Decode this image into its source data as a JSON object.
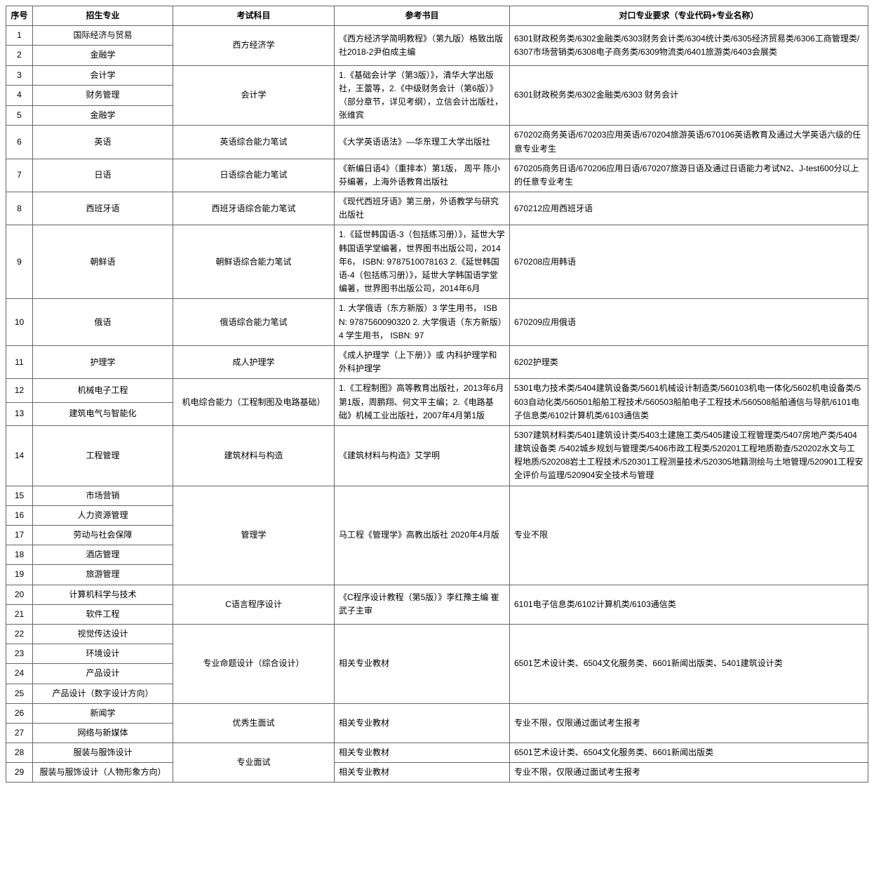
{
  "headers": {
    "no": "序号",
    "major": "招生专业",
    "exam": "考试科目",
    "ref": "参考书目",
    "req": "对口专业要求（专业代码+专业名称）"
  },
  "rows": {
    "r1": {
      "no": "1",
      "major": "国际经济与贸易"
    },
    "r2": {
      "no": "2",
      "major": "金融学"
    },
    "r3": {
      "no": "3",
      "major": "会计学"
    },
    "r4": {
      "no": "4",
      "major": "财务管理"
    },
    "r5": {
      "no": "5",
      "major": "金融学"
    },
    "r6": {
      "no": "6",
      "major": "英语"
    },
    "r7": {
      "no": "7",
      "major": "日语"
    },
    "r8": {
      "no": "8",
      "major": "西班牙语"
    },
    "r9": {
      "no": "9",
      "major": "朝鲜语"
    },
    "r10": {
      "no": "10",
      "major": "俄语"
    },
    "r11": {
      "no": "11",
      "major": "护理学"
    },
    "r12": {
      "no": "12",
      "major": "机械电子工程"
    },
    "r13": {
      "no": "13",
      "major": "建筑电气与智能化"
    },
    "r14": {
      "no": "14",
      "major": "工程管理"
    },
    "r15": {
      "no": "15",
      "major": "市场营销"
    },
    "r16": {
      "no": "16",
      "major": "人力资源管理"
    },
    "r17": {
      "no": "17",
      "major": "劳动与社会保障"
    },
    "r18": {
      "no": "18",
      "major": "酒店管理"
    },
    "r19": {
      "no": "19",
      "major": "旅游管理"
    },
    "r20": {
      "no": "20",
      "major": "计算机科学与技术"
    },
    "r21": {
      "no": "21",
      "major": "软件工程"
    },
    "r22": {
      "no": "22",
      "major": "视觉传达设计"
    },
    "r23": {
      "no": "23",
      "major": "环境设计"
    },
    "r24": {
      "no": "24",
      "major": "产品设计"
    },
    "r25": {
      "no": "25",
      "major": "产品设计（数字设计方向）"
    },
    "r26": {
      "no": "26",
      "major": "新闻学"
    },
    "r27": {
      "no": "27",
      "major": "网络与新媒体"
    },
    "r28": {
      "no": "28",
      "major": "服装与服饰设计"
    },
    "r29": {
      "no": "29",
      "major": "服装与服饰设计（人物形象方向）"
    }
  },
  "exam": {
    "e1": "西方经济学",
    "e2": "会计学",
    "e3": "英语综合能力笔试",
    "e4": "日语综合能力笔试",
    "e5": "西班牙语综合能力笔试",
    "e6": "朝鲜语综合能力笔试",
    "e7": "俄语综合能力笔试",
    "e8": "成人护理学",
    "e9": "机电综合能力（工程制图及电路基础）",
    "e10": "建筑材料与构造",
    "e11": "管理学",
    "e12": "C语言程序设计",
    "e13": "专业命题设计（综合设计）",
    "e14": "优秀生面试",
    "e15": "专业面试"
  },
  "ref": {
    "f1": "《西方经济学简明教程》（第九版）格致出版社2018-2尹伯成主编",
    "f2": "1.《基础会计学（第3版）》，清华大学出版社，王蕾等，2.《中级财务会计（第6版）》（部分章节，详见考纲），立信会计出版社，张维宾",
    "f3": "《大学英语语法》—华东理工大学出版社",
    "f4": "《新编日语4》（重排本）第1版， 周平 陈小芬编著，上海外语教育出版社",
    "f5": "《现代西班牙语》第三册，外语教学与研究出版社",
    "f6": "1.《延世韩国语-3（包括练习册）》，延世大学韩国语学堂编著，世界图书出版公司，2014年6， ISBN: 9787510078163 2.《延世韩国语-4（包括练习册）》，延世大学韩国语学堂编著，世界图书出版公司，2014年6月",
    "f7": "1. 大学俄语（东方新版）3 学生用书， ISBN: 9787560090320   2. 大学俄语（东方新版）4 学生用书， ISBN: 97",
    "f8": "《成人护理学（上下册）》或 内科护理学和外科护理学",
    "f9": "1.《工程制图》高等教育出版社，2013年6月第1版，周鹏翔、何文平主编；2.《电路基础》机械工业出版社，2007年4月第1版",
    "f10": "《建筑材料与构造》艾学明",
    "f11": "马工程《管理学》高教出版社 2020年4月版",
    "f12": "《C程序设计教程（第5版）》李红豫主编 崔武子主审",
    "f13": "相关专业教材",
    "f14": "相关专业教材",
    "f15": "相关专业教材",
    "f16": "相关专业教材"
  },
  "req": {
    "q1": "6301财政税务类/6302金融类/6303财务会计类/6304统计类/6305经济贸易类/6306工商管理类/6307市场营销类/6308电子商务类/6309物流类/6401旅游类/6403会展类",
    "q2": "6301财政税务类/6302金融类/6303 财务会计",
    "q3": "670202商务英语/670203应用英语/670204旅游英语/670106英语教育及通过大学英语六级的任意专业考生",
    "q4": "670205商务日语/670206应用日语/670207旅游日语及通过日语能力考试N2、J-test600分以上的任意专业考生",
    "q5": "670212应用西班牙语",
    "q6": "670208应用韩语",
    "q7": "670209应用俄语",
    "q8": "6202护理类",
    "q9": "5301电力技术类/5404建筑设备类/5601机械设计制造类/560103机电一体化/5602机电设备类/5603自动化类/560501船舶工程技术/560503船舶电子工程技术/560508船舶通信与导航/6101电子信息类/6102计算机类/6103通信类",
    "q10": "5307建筑材料类/5401建筑设计类/5403土建施工类/5405建设工程管理类/5407房地产类/5404建筑设备类 /5402城乡规划与管理类/5406市政工程类/520201工程地质勘查/520202水文与工程地质/520208岩土工程技术/520301工程测量技术/520305地籍测绘与土地管理/520901工程安全评价与监理/520904安全技术与管理",
    "q11": "专业不限",
    "q12": "6101电子信息类/6102计算机类/6103通信类",
    "q13": "6501艺术设计类、6504文化服务类、6601新闻出版类、5401建筑设计类",
    "q14": "专业不限，仅限通过面试考生报考",
    "q15": "6501艺术设计类、6504文化服务类、6601新闻出版类",
    "q16": "专业不限，仅限通过面试考生报考"
  }
}
